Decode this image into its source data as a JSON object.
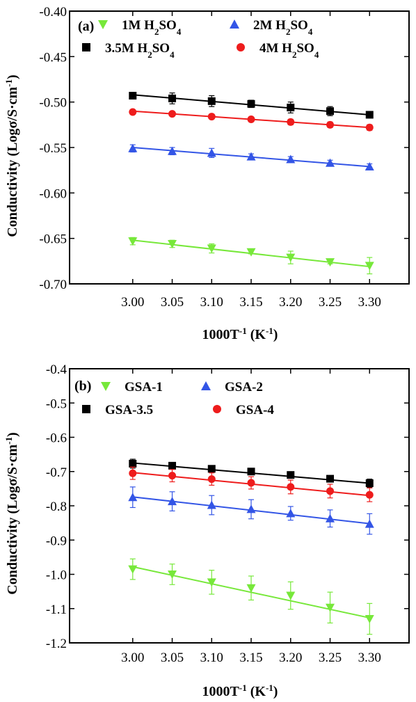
{
  "colors": {
    "black": "#000000",
    "red": "#ee1c1c",
    "blue": "#3355e6",
    "green": "#77e83a"
  },
  "chart_data": [
    {
      "type": "scatter",
      "panel": "(a)",
      "xlabel": {
        "main": "1000T",
        "sup": "-1",
        "unit_open": " (K",
        "unit_sup": "-1",
        "unit_close": ")"
      },
      "ylabel": {
        "main": "Conductivity (Logσ/S·cm",
        "sup": "-1",
        "close": ")"
      },
      "xlim": [
        2.92,
        3.35
      ],
      "ylim": [
        -0.7,
        -0.4
      ],
      "xticks": [
        "3.00",
        "3.05",
        "3.10",
        "3.15",
        "3.20",
        "3.25",
        "3.30"
      ],
      "yticks": [
        "-0.40",
        "-0.45",
        "-0.50",
        "-0.55",
        "-0.60",
        "-0.65",
        "-0.70"
      ],
      "legend_position": "top",
      "x": [
        3.0,
        3.05,
        3.1,
        3.15,
        3.2,
        3.25,
        3.3
      ],
      "series": [
        {
          "name": "1M H2SO4",
          "base": "1M H",
          "sub1": "2",
          "mid": "SO",
          "sub2": "4",
          "marker": "triangle-down",
          "color": "#77e83a",
          "values": [
            -0.653,
            -0.656,
            -0.661,
            -0.665,
            -0.671,
            -0.676,
            -0.68
          ],
          "errors": [
            0.004,
            0.004,
            0.005,
            0.002,
            0.007,
            0.002,
            0.009
          ],
          "fit": [
            -0.652,
            -0.681
          ]
        },
        {
          "name": "2M H2SO4",
          "base": "2M H",
          "sub1": "2",
          "mid": "SO",
          "sub2": "4",
          "marker": "triangle-up",
          "color": "#3355e6",
          "values": [
            -0.551,
            -0.554,
            -0.556,
            -0.56,
            -0.563,
            -0.567,
            -0.571
          ],
          "errors": [
            0.004,
            0.004,
            0.005,
            0.003,
            0.003,
            0.003,
            0.003
          ],
          "fit": [
            -0.55,
            -0.571
          ]
        },
        {
          "name": "3.5M H2SO4",
          "base": "3.5M H",
          "sub1": "2",
          "mid": "SO",
          "sub2": "4",
          "marker": "square",
          "color": "#000000",
          "values": [
            -0.493,
            -0.496,
            -0.499,
            -0.502,
            -0.506,
            -0.51,
            -0.514
          ],
          "errors": [
            0.003,
            0.006,
            0.006,
            0.004,
            0.006,
            0.005,
            0.002
          ],
          "fit": [
            -0.492,
            -0.514
          ]
        },
        {
          "name": "4M H2SO4",
          "base": "4M H",
          "sub1": "2",
          "mid": "SO",
          "sub2": "4",
          "marker": "circle",
          "color": "#ee1c1c",
          "values": [
            -0.511,
            -0.513,
            -0.516,
            -0.519,
            -0.522,
            -0.525,
            -0.528
          ],
          "errors": [
            0.002,
            0.002,
            0.002,
            0.002,
            0.003,
            0.003,
            0.003
          ],
          "fit": [
            -0.51,
            -0.528
          ]
        }
      ]
    },
    {
      "type": "scatter",
      "panel": "(b)",
      "xlabel": {
        "main": "1000T",
        "sup": "-1",
        "unit_open": " (K",
        "unit_sup": "-1",
        "unit_close": ")"
      },
      "ylabel": {
        "main": "Conductivity (Logσ/S·cm",
        "sup": "-1",
        "close": ")"
      },
      "xlim": [
        2.92,
        3.35
      ],
      "ylim": [
        -1.2,
        -0.4
      ],
      "xticks": [
        "3.00",
        "3.05",
        "3.10",
        "3.15",
        "3.20",
        "3.25",
        "3.30"
      ],
      "yticks": [
        "-0.4",
        "-0.5",
        "-0.6",
        "-0.7",
        "-0.8",
        "-0.9",
        "-1.0",
        "-1.1",
        "-1.2"
      ],
      "legend_position": "top",
      "x": [
        3.0,
        3.05,
        3.1,
        3.15,
        3.2,
        3.25,
        3.3
      ],
      "series": [
        {
          "name": "GSA-1",
          "base": "GSA-1",
          "marker": "triangle-down",
          "color": "#77e83a",
          "values": [
            -0.985,
            -1.0,
            -1.023,
            -1.04,
            -1.062,
            -1.097,
            -1.13
          ],
          "errors": [
            0.03,
            0.03,
            0.035,
            0.035,
            0.04,
            0.045,
            0.045
          ],
          "fit": [
            -0.978,
            -1.127
          ]
        },
        {
          "name": "GSA-2",
          "base": "GSA-2",
          "marker": "triangle-up",
          "color": "#3355e6",
          "values": [
            -0.775,
            -0.787,
            -0.798,
            -0.81,
            -0.822,
            -0.837,
            -0.853
          ],
          "errors": [
            0.03,
            0.028,
            0.028,
            0.028,
            0.02,
            0.025,
            0.03
          ],
          "fit": [
            -0.774,
            -0.852
          ]
        },
        {
          "name": "GSA-3.5",
          "base": "GSA-3.5",
          "marker": "square",
          "color": "#000000",
          "values": [
            -0.677,
            -0.683,
            -0.692,
            -0.7,
            -0.71,
            -0.721,
            -0.734
          ],
          "errors": [
            0.013,
            0.008,
            0.008,
            0.008,
            0.008,
            0.008,
            0.012
          ],
          "fit": [
            -0.675,
            -0.734
          ]
        },
        {
          "name": "GSA-4",
          "base": "GSA-4",
          "marker": "circle",
          "color": "#ee1c1c",
          "values": [
            -0.705,
            -0.712,
            -0.722,
            -0.733,
            -0.745,
            -0.757,
            -0.768
          ],
          "errors": [
            0.018,
            0.018,
            0.018,
            0.018,
            0.02,
            0.02,
            0.02
          ],
          "fit": [
            -0.703,
            -0.77
          ]
        }
      ]
    }
  ]
}
